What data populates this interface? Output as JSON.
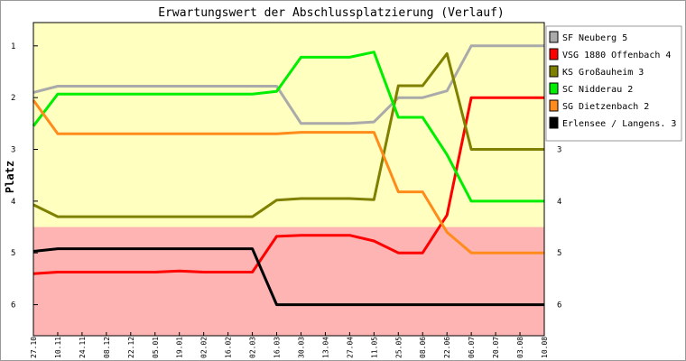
{
  "chart_data": {
    "type": "line",
    "title": "Erwartungswert der Abschlussplatzierung (Verlauf)",
    "ylabel": "Platz",
    "ylim": [
      0.55,
      6.6
    ],
    "yticks": [
      "1",
      "2",
      "3",
      "4",
      "5",
      "6"
    ],
    "x": [
      "27.10",
      "10.11",
      "24.11",
      "08.12",
      "22.12",
      "05.01",
      "19.01",
      "02.02",
      "16.02",
      "02.03",
      "16.03",
      "30.03",
      "13.04",
      "27.04",
      "11.05",
      "25.05",
      "08.06",
      "22.06",
      "06.07",
      "20.07",
      "03.08",
      "10.08"
    ],
    "zones": [
      {
        "from": 0.55,
        "to": 4.5,
        "color": "#ffffc0"
      },
      {
        "from": 4.5,
        "to": 6.6,
        "color": "#ffb4b4"
      }
    ],
    "series": [
      {
        "name": "SF Neuberg 5",
        "color": "#aaaaaa",
        "values": [
          1.9,
          1.78,
          1.78,
          1.78,
          1.78,
          1.78,
          1.78,
          1.78,
          1.78,
          1.78,
          1.78,
          2.5,
          2.5,
          2.5,
          2.47,
          2.0,
          2.0,
          1.87,
          1.0,
          1.0,
          1.0,
          1.0
        ]
      },
      {
        "name": "VSG 1880 Offenbach 4",
        "color": "#ff0000",
        "values": [
          5.4,
          5.37,
          5.37,
          5.37,
          5.37,
          5.37,
          5.35,
          5.37,
          5.37,
          5.37,
          4.68,
          4.66,
          4.66,
          4.66,
          4.77,
          5.0,
          5.0,
          4.27,
          2.0,
          2.0,
          2.0,
          2.0
        ]
      },
      {
        "name": "KS Großauheim 3",
        "color": "#808000",
        "values": [
          4.07,
          4.3,
          4.3,
          4.3,
          4.3,
          4.3,
          4.3,
          4.3,
          4.3,
          4.3,
          3.98,
          3.95,
          3.95,
          3.95,
          3.97,
          1.77,
          1.77,
          1.15,
          3.0,
          3.0,
          3.0,
          3.0
        ]
      },
      {
        "name": "SC Nidderau 2",
        "color": "#00ee00",
        "values": [
          2.55,
          1.93,
          1.93,
          1.93,
          1.93,
          1.93,
          1.93,
          1.93,
          1.93,
          1.93,
          1.88,
          1.22,
          1.22,
          1.22,
          1.12,
          2.38,
          2.38,
          3.1,
          4.0,
          4.0,
          4.0,
          4.0
        ]
      },
      {
        "name": "SG Dietzenbach 2",
        "color": "#ff8c1a",
        "values": [
          2.05,
          2.7,
          2.7,
          2.7,
          2.7,
          2.7,
          2.7,
          2.7,
          2.7,
          2.7,
          2.7,
          2.67,
          2.67,
          2.67,
          2.67,
          3.82,
          3.82,
          4.6,
          5.0,
          5.0,
          5.0,
          5.0
        ]
      },
      {
        "name": "Erlensee / Langens. 3",
        "color": "#000000",
        "values": [
          4.97,
          4.92,
          4.92,
          4.92,
          4.92,
          4.92,
          4.92,
          4.92,
          4.92,
          4.92,
          6.0,
          6.0,
          6.0,
          6.0,
          6.0,
          6.0,
          6.0,
          6.0,
          6.0,
          6.0,
          6.0,
          6.0
        ]
      }
    ]
  }
}
